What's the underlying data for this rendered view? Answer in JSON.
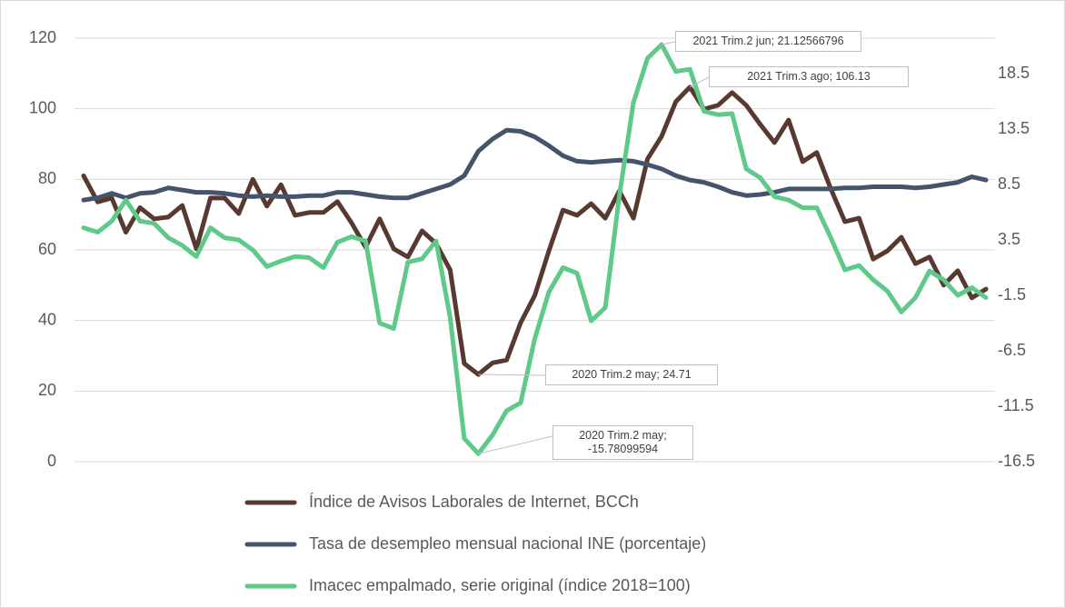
{
  "chart_data": {
    "type": "line",
    "categories": [
      null,
      null,
      null,
      null,
      null,
      null,
      null,
      null,
      null,
      null,
      null,
      null,
      null,
      null,
      null,
      null,
      null,
      null,
      null,
      null,
      null,
      null,
      null,
      null,
      null,
      null,
      null,
      null,
      null,
      null,
      null,
      null,
      null,
      null,
      null,
      null,
      null,
      null,
      null,
      null,
      null,
      null,
      null,
      null,
      null,
      null,
      null,
      null,
      null,
      null,
      null,
      null,
      null,
      null,
      null,
      null,
      null,
      null,
      null,
      null,
      null,
      null,
      null,
      null,
      null
    ],
    "series": [
      {
        "name": "Índice de Avisos Laborales de Internet, BCCh",
        "color": "#58392f",
        "axis": "y",
        "values": [
          81,
          73.6,
          74.7,
          65,
          72,
          68.8,
          69.3,
          72.6,
          60.3,
          74.7,
          74.7,
          70.3,
          80,
          72.4,
          78.5,
          69.8,
          70.6,
          70.6,
          73.7,
          67.7,
          60.8,
          68.8,
          60.3,
          58,
          65.4,
          61.8,
          54.3,
          27.8,
          24.71,
          28,
          28.8,
          39.4,
          47.1,
          59.7,
          71.3,
          69.8,
          73.1,
          69,
          76.7,
          69,
          85.8,
          92.2,
          102,
          106.13,
          99.9,
          101,
          104.6,
          101,
          95.5,
          90.4,
          96.8,
          85,
          87.6,
          77.3,
          68,
          69,
          57.4,
          59.7,
          63.6,
          56.1,
          58,
          50,
          54.1,
          46.4,
          48.9
        ]
      },
      {
        "name": "Tasa de desempleo mensual nacional INE (porcentaje)",
        "color": "#44546a",
        "axis": "y2",
        "values": [
          7.1,
          7.3,
          7.7,
          7.3,
          7.7,
          7.8,
          8.2,
          8.0,
          7.8,
          7.8,
          7.7,
          7.5,
          7.4,
          7.5,
          7.4,
          7.4,
          7.5,
          7.5,
          7.8,
          7.8,
          7.6,
          7.4,
          7.3,
          7.3,
          7.7,
          8.1,
          8.5,
          9.3,
          11.5,
          12.6,
          13.4,
          13.3,
          12.8,
          12.0,
          11.1,
          10.6,
          10.5,
          10.6,
          10.7,
          10.6,
          10.3,
          9.9,
          9.3,
          8.9,
          8.7,
          8.3,
          7.8,
          7.5,
          7.6,
          7.8,
          8.1,
          8.1,
          8.1,
          8.1,
          8.2,
          8.2,
          8.3,
          8.3,
          8.3,
          8.2,
          8.3,
          8.5,
          8.7,
          9.2,
          8.9
        ]
      },
      {
        "name": "Imacec empalmado, serie original (índice 2018=100)",
        "color": "#5fc98a",
        "axis": "y2",
        "values": [
          4.6,
          4.2,
          5.2,
          7.1,
          5.2,
          5.0,
          3.7,
          3.0,
          2.0,
          4.6,
          3.7,
          3.5,
          2.6,
          1.1,
          1.6,
          2.0,
          1.9,
          1.0,
          3.3,
          3.8,
          3.4,
          -4.0,
          -4.5,
          1.5,
          1.8,
          3.4,
          -3.5,
          -14.4,
          -15.78099594,
          -14.1,
          -11.9,
          -11.2,
          -5.4,
          -1.2,
          1.0,
          0.5,
          -3.8,
          -2.6,
          7.5,
          15.9,
          19.9,
          21.12566796,
          18.7,
          18.9,
          15.1,
          14.8,
          14.9,
          9.9,
          9.1,
          7.4,
          7.1,
          6.4,
          6.4,
          3.7,
          0.8,
          1.2,
          -0.1,
          -1.1,
          -3.0,
          -1.7,
          0.7,
          -0.1,
          -1.5,
          -0.8,
          -1.7
        ]
      }
    ],
    "ylim": [
      0,
      120
    ],
    "yticks": [
      0,
      20,
      40,
      60,
      80,
      100,
      120
    ],
    "y2lim": [
      -16.5,
      21.7
    ],
    "y2ticks": [
      -16.5,
      -11.5,
      -6.5,
      -1.5,
      3.5,
      8.5,
      13.5,
      18.5
    ],
    "grid": true,
    "legend": "bottom",
    "annotations": [
      "2021 Trim.2 jun; 21.12566796",
      "2021 Trim.3 ago; 106.13",
      "2020 Trim.2 may; 24.71",
      "2020 Trim.2 may; -15.78099594"
    ]
  }
}
